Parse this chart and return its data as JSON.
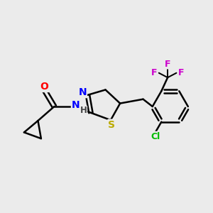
{
  "bg_color": "#ebebeb",
  "bond_color": "#000000",
  "line_width": 1.8,
  "atom_colors": {
    "O": "#ff0000",
    "N": "#0000ff",
    "S": "#bbaa00",
    "Cl": "#00bb00",
    "F": "#cc00cc",
    "C": "#000000",
    "H": "#444444"
  },
  "font_size": 9,
  "fig_size": [
    3.0,
    3.0
  ],
  "dpi": 100
}
